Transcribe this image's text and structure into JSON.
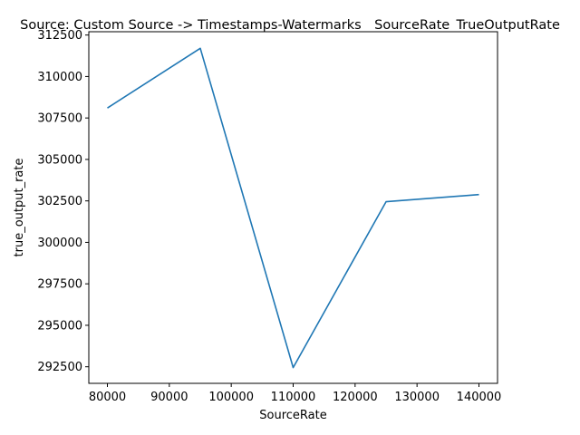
{
  "chart_data": {
    "type": "line",
    "title": "Source: Custom Source -> Timestamps-Watermarks__SourceRate_TrueOutputRate",
    "xlabel": "SourceRate",
    "ylabel": "true_output_rate",
    "x": [
      80000,
      95000,
      110000,
      125000,
      140000
    ],
    "series": [
      {
        "values": [
          308100,
          311700,
          292450,
          302450,
          302880
        ]
      }
    ],
    "xlim": [
      77000,
      143000
    ],
    "ylim": [
      291500,
      312700
    ],
    "xticks": [
      80000,
      90000,
      100000,
      110000,
      120000,
      130000,
      140000
    ],
    "yticks": [
      292500,
      295000,
      297500,
      300000,
      302500,
      305000,
      307500,
      310000,
      312500
    ],
    "xtick_labels": [
      "80000",
      "90000",
      "100000",
      "110000",
      "120000",
      "130000",
      "140000"
    ],
    "ytick_labels": [
      "292500",
      "295000",
      "297500",
      "300000",
      "302500",
      "305000",
      "307500",
      "310000",
      "312500"
    ],
    "grid": false,
    "line_color": "#1f77b4"
  }
}
